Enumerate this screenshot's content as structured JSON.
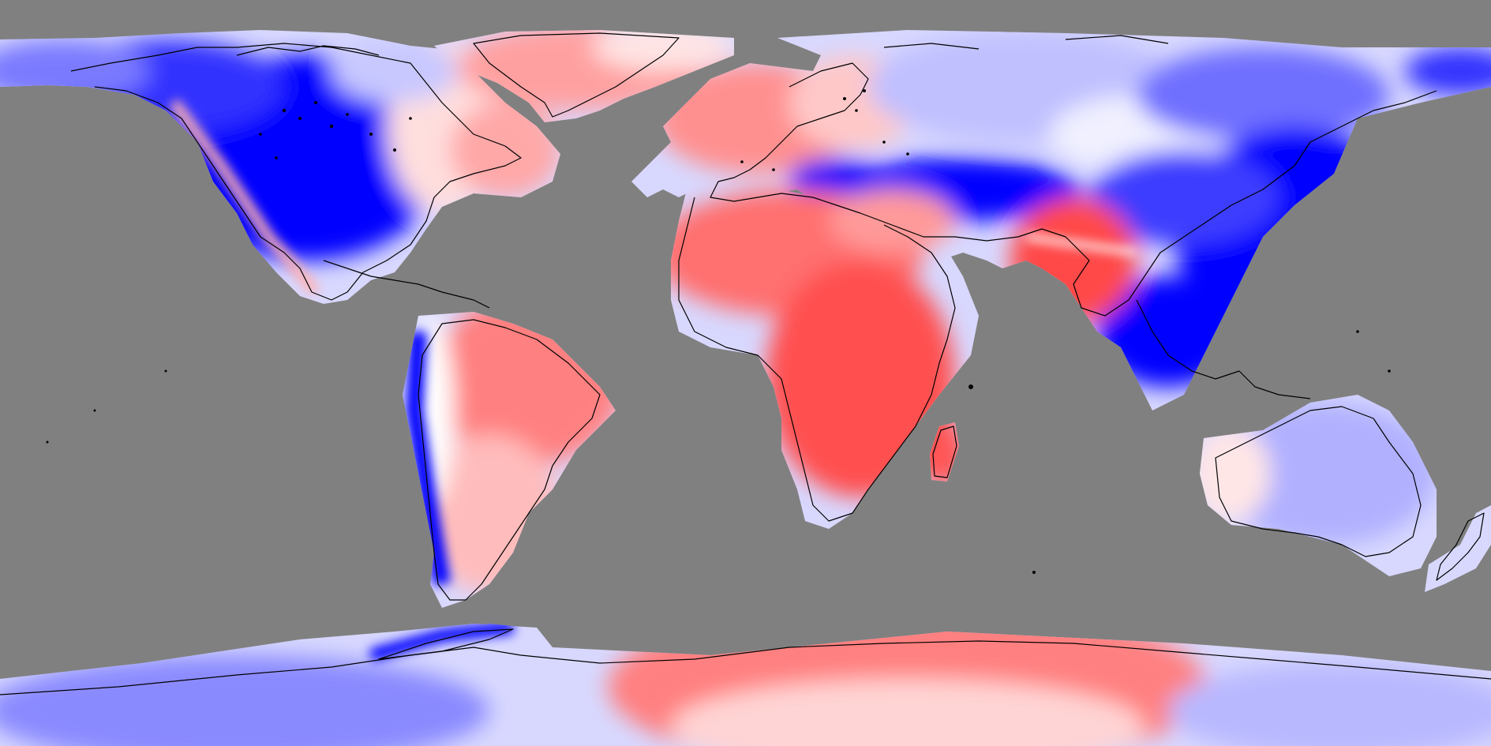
{
  "map": {
    "projection": "equirectangular",
    "background_color": "#808080",
    "coastline_color": "#000000",
    "palette": {
      "strong_blue": "#0000ff",
      "mid_blue": "#5a5aff",
      "light_blue": "#b3b3ff",
      "pale_blue": "#dcdcff",
      "white": "#ffffff",
      "pale_red": "#ffd6d6",
      "light_red": "#ffa3a3",
      "mid_red": "#ff7070",
      "strong_red": "#ff5252"
    },
    "regions": [
      {
        "name": "north-america-west",
        "tone": "strong_blue"
      },
      {
        "name": "north-america-east",
        "tone": "pale_blue"
      },
      {
        "name": "greenland",
        "tone": "light_red"
      },
      {
        "name": "europe-west",
        "tone": "light_red"
      },
      {
        "name": "siberia",
        "tone": "light_blue"
      },
      {
        "name": "east-asia",
        "tone": "strong_blue"
      },
      {
        "name": "himalaya-band",
        "tone": "strong_blue"
      },
      {
        "name": "india",
        "tone": "strong_red"
      },
      {
        "name": "africa",
        "tone": "mid_red"
      },
      {
        "name": "madagascar",
        "tone": "mid_red"
      },
      {
        "name": "south-america-east",
        "tone": "light_red"
      },
      {
        "name": "andes",
        "tone": "strong_blue"
      },
      {
        "name": "australia",
        "tone": "light_blue"
      },
      {
        "name": "new-zealand",
        "tone": "light_blue"
      },
      {
        "name": "antarctica-west",
        "tone": "light_blue"
      },
      {
        "name": "antarctica-east",
        "tone": "light_red"
      }
    ]
  }
}
